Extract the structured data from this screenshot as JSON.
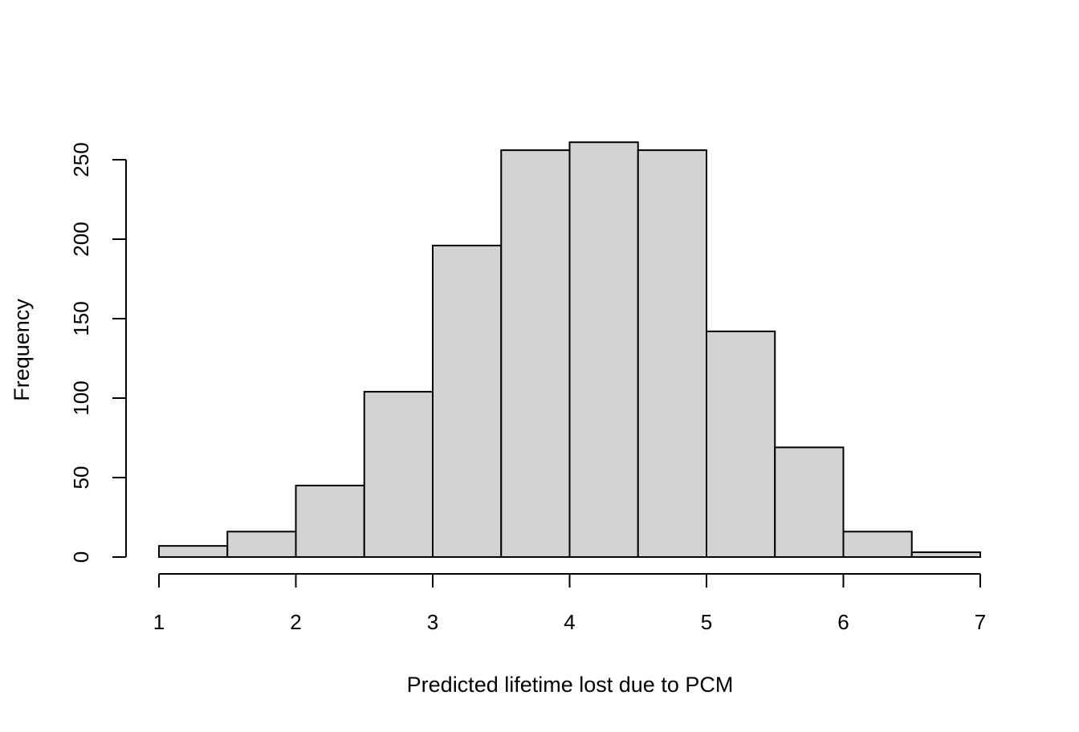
{
  "chart_data": {
    "type": "bar",
    "title": "",
    "xlabel": "Predicted lifetime lost due to PCM",
    "ylabel": "Frequency",
    "bins": [
      {
        "from": 1.0,
        "to": 1.5,
        "count": 7
      },
      {
        "from": 1.5,
        "to": 2.0,
        "count": 16
      },
      {
        "from": 2.0,
        "to": 2.5,
        "count": 45
      },
      {
        "from": 2.5,
        "to": 3.0,
        "count": 104
      },
      {
        "from": 3.0,
        "to": 3.5,
        "count": 196
      },
      {
        "from": 3.5,
        "to": 4.0,
        "count": 256
      },
      {
        "from": 4.0,
        "to": 4.5,
        "count": 261
      },
      {
        "from": 4.5,
        "to": 5.0,
        "count": 256
      },
      {
        "from": 5.0,
        "to": 5.5,
        "count": 142
      },
      {
        "from": 5.5,
        "to": 6.0,
        "count": 69
      },
      {
        "from": 6.0,
        "to": 6.5,
        "count": 16
      },
      {
        "from": 6.5,
        "to": 7.0,
        "count": 3
      }
    ],
    "xlim": [
      1,
      7
    ],
    "ylim": [
      0,
      250
    ],
    "xticks": [
      "1",
      "2",
      "3",
      "4",
      "5",
      "6",
      "7"
    ],
    "yticks": [
      "0",
      "50",
      "100",
      "150",
      "200",
      "250"
    ],
    "bar_color": "#d3d3d3",
    "grid": false,
    "legend": "none"
  }
}
